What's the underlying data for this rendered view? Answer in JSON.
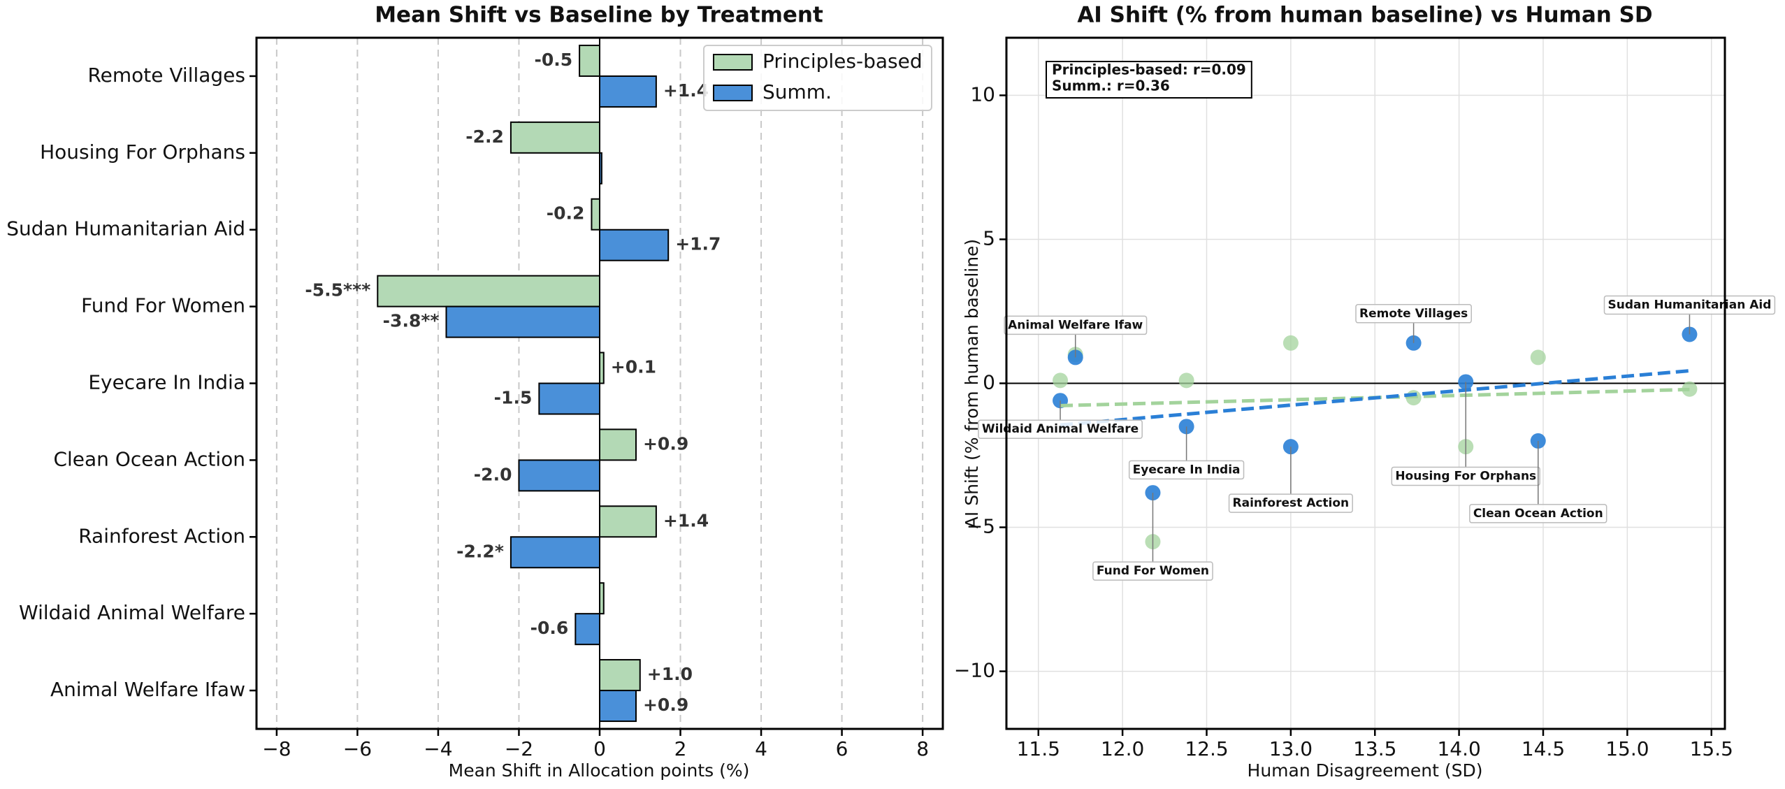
{
  "chart_data": [
    {
      "type": "barh",
      "title": "Mean Shift vs Baseline by Treatment",
      "xlabel": "Mean Shift in Allocation points (%)",
      "categories": [
        "Remote Villages",
        "Housing For Orphans",
        "Sudan Humanitarian Aid",
        "Fund For Women",
        "Eyecare In India",
        "Clean Ocean Action",
        "Rainforest Action",
        "Wildaid Animal Welfare",
        "Animal Welfare Ifaw"
      ],
      "series": [
        {
          "name": "Principles-based",
          "color": "#b3d9b5",
          "values": [
            -0.5,
            -2.2,
            -0.2,
            -5.5,
            0.1,
            0.9,
            1.4,
            0.1,
            1.0
          ],
          "value_labels": [
            "-0.5",
            "-2.2",
            "-0.2",
            "-5.5***",
            "+0.1",
            "+0.9",
            "+1.4",
            null,
            "+1.0"
          ]
        },
        {
          "name": "Summ.",
          "color": "#4a90d9",
          "values": [
            1.4,
            0.05,
            1.7,
            -3.8,
            -1.5,
            -2.0,
            -2.2,
            -0.6,
            0.9
          ],
          "value_labels": [
            "+1.4",
            null,
            "+1.7",
            "-3.8**",
            "-1.5",
            "-2.0",
            "-2.2*",
            "-0.6",
            "+0.9"
          ]
        }
      ],
      "xlim": [
        -8.5,
        8.5
      ],
      "xticks": [
        {
          "value": -8,
          "label": "−8"
        },
        {
          "value": -6,
          "label": "−6"
        },
        {
          "value": -4,
          "label": "−4"
        },
        {
          "value": -2,
          "label": "−2"
        },
        0,
        2,
        4,
        6,
        8
      ],
      "grid": true,
      "legend": "upper right"
    },
    {
      "type": "scatter",
      "title": "AI Shift (% from human baseline) vs Human SD",
      "xlabel": "Human Disagreement (SD)",
      "ylabel": "AI Shift (% from human baseline)",
      "categories": [
        "Remote Villages",
        "Housing For Orphans",
        "Sudan Humanitarian Aid",
        "Fund For Women",
        "Eyecare In India",
        "Clean Ocean Action",
        "Rainforest Action",
        "Wildaid Animal Welfare",
        "Animal Welfare Ifaw"
      ],
      "x": [
        13.73,
        14.04,
        15.37,
        12.18,
        12.38,
        14.47,
        13.0,
        11.63,
        11.72
      ],
      "series": [
        {
          "name": "Principles-based",
          "color": "#a3d39c",
          "values": [
            -0.5,
            -2.2,
            -0.2,
            -5.5,
            0.1,
            0.9,
            1.4,
            0.1,
            1.0
          ]
        },
        {
          "name": "Summ.",
          "color": "#2a7fd6",
          "values": [
            1.4,
            0.05,
            1.7,
            -3.8,
            -1.5,
            -2.0,
            -2.2,
            -0.6,
            0.9
          ]
        }
      ],
      "annotation": [
        "Principles-based: r=0.09",
        "Summ.: r=0.36"
      ],
      "xlim": [
        11.31,
        15.58
      ],
      "xticks": [
        11.5,
        {
          "value": 12,
          "label": "12.0"
        },
        12.5,
        {
          "value": 13,
          "label": "13.0"
        },
        13.5,
        {
          "value": 14,
          "label": "14.0"
        },
        14.5,
        {
          "value": 15,
          "label": "15.0"
        },
        15.5
      ],
      "ylim": [
        -12,
        12
      ],
      "yticks": [
        {
          "value": -10,
          "label": "−10"
        },
        {
          "value": -5,
          "label": "−5"
        },
        0,
        5,
        10
      ],
      "grid": true,
      "trendline": true
    }
  ]
}
